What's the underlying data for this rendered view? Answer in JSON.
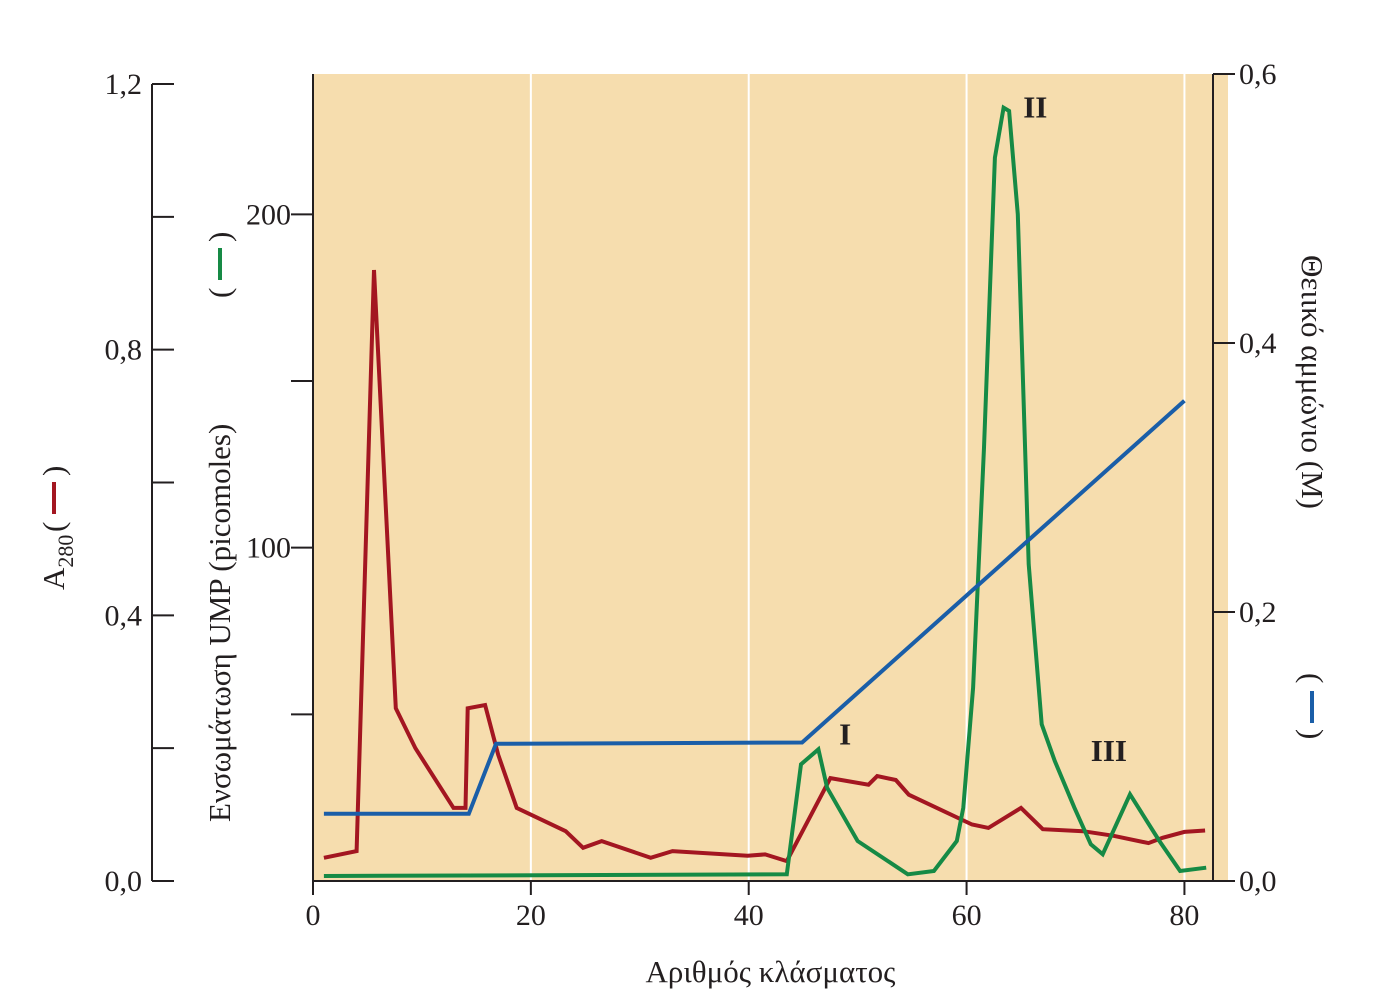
{
  "chart_data": {
    "type": "line",
    "plot_background": "#f6ddae",
    "axis_color": "#231f20",
    "gridline_color": "#ffffff",
    "x_axis": {
      "label": "Αριθμός κλάσματος",
      "range": [
        0,
        84
      ],
      "ticks": [
        0,
        20,
        40,
        60,
        80
      ],
      "tick_labels": [
        "0",
        "20",
        "40",
        "60",
        "80"
      ],
      "gridlines_at": [
        20,
        40,
        60,
        80
      ]
    },
    "y_axis_a280": {
      "label_main": "A",
      "label_sub": "280",
      "label_open": "(",
      "label_close": ")",
      "range": [
        0,
        1.2
      ],
      "major_ticks": [
        0,
        0.4,
        0.8,
        1.2
      ],
      "minor_ticks": [
        0.2,
        0.6,
        1.0
      ],
      "tick_labels": [
        "0,0",
        "0,4",
        "0,8",
        "1,2"
      ],
      "color": "#a31621"
    },
    "y_axis_ump": {
      "label": "Ενσωμάτωση UMP (picomoles)",
      "label_open": "(",
      "label_close": ")",
      "range": [
        0,
        240
      ],
      "major_ticks": [
        100,
        200
      ],
      "minor_ticks": [
        50,
        150
      ],
      "tick_labels": [
        "100",
        "200"
      ],
      "color": "#168a45"
    },
    "y_axis_ammonium": {
      "label": "Θειικό αμμώνιο (M)",
      "label_open": "(",
      "label_close": ")",
      "range": [
        0,
        0.6
      ],
      "major_ticks": [
        0,
        0.2,
        0.4,
        0.6
      ],
      "tick_labels": [
        "0,0",
        "0,2",
        "0,4",
        "0,6"
      ],
      "color": "#1a5ea8"
    },
    "series": [
      {
        "name": "A280",
        "axis": "a280",
        "color": "#a31621",
        "points": [
          [
            1,
            0.035
          ],
          [
            4,
            0.045
          ],
          [
            5.6,
            0.92
          ],
          [
            7.6,
            0.26
          ],
          [
            9.4,
            0.2
          ],
          [
            12.9,
            0.11
          ],
          [
            14,
            0.11
          ],
          [
            14.2,
            0.26
          ],
          [
            15.8,
            0.265
          ],
          [
            17,
            0.19
          ],
          [
            18.7,
            0.11
          ],
          [
            23.2,
            0.075
          ],
          [
            24.8,
            0.05
          ],
          [
            26.5,
            0.06
          ],
          [
            31,
            0.035
          ],
          [
            33,
            0.045
          ],
          [
            39.9,
            0.038
          ],
          [
            41.5,
            0.04
          ],
          [
            43.5,
            0.03
          ],
          [
            47.5,
            0.155
          ],
          [
            51,
            0.145
          ],
          [
            51.8,
            0.158
          ],
          [
            53.5,
            0.152
          ],
          [
            54.7,
            0.13
          ],
          [
            60.5,
            0.085
          ],
          [
            62,
            0.08
          ],
          [
            65,
            0.11
          ],
          [
            67,
            0.078
          ],
          [
            70.7,
            0.075
          ],
          [
            73.5,
            0.068
          ],
          [
            76.7,
            0.057
          ],
          [
            78,
            0.065
          ],
          [
            80,
            0.074
          ],
          [
            81.9,
            0.076
          ]
        ]
      },
      {
        "name": "UMP",
        "axis": "ump",
        "color": "#168a45",
        "points": [
          [
            1,
            1.5
          ],
          [
            43.5,
            2
          ],
          [
            44.8,
            35
          ],
          [
            46.4,
            39.5
          ],
          [
            47.2,
            28
          ],
          [
            50,
            12
          ],
          [
            54.6,
            2
          ],
          [
            57,
            3
          ],
          [
            59.1,
            12
          ],
          [
            59.7,
            22
          ],
          [
            60.6,
            58
          ],
          [
            61.6,
            130
          ],
          [
            62.6,
            217
          ],
          [
            63.4,
            232
          ],
          [
            63.9,
            231
          ],
          [
            64.7,
            200
          ],
          [
            65.7,
            95
          ],
          [
            66.9,
            47
          ],
          [
            68.1,
            36
          ],
          [
            69.9,
            22
          ],
          [
            71.4,
            11
          ],
          [
            72.5,
            8
          ],
          [
            75,
            26
          ],
          [
            77.7,
            12
          ],
          [
            79.6,
            3
          ],
          [
            82,
            4
          ]
        ]
      },
      {
        "name": "Ammonium sulfate",
        "axis": "ammonium",
        "color": "#1a5ea8",
        "points": [
          [
            1,
            0.05
          ],
          [
            14.3,
            0.05
          ],
          [
            16.8,
            0.102
          ],
          [
            44.9,
            0.103
          ],
          [
            80,
            0.357
          ]
        ]
      }
    ],
    "annotations": [
      {
        "text": "I",
        "x": 48.3,
        "y_ump": 41
      },
      {
        "text": "II",
        "x": 65.2,
        "y_ump": 229
      },
      {
        "text": "III",
        "x": 71.4,
        "y_ump": 36
      }
    ]
  }
}
